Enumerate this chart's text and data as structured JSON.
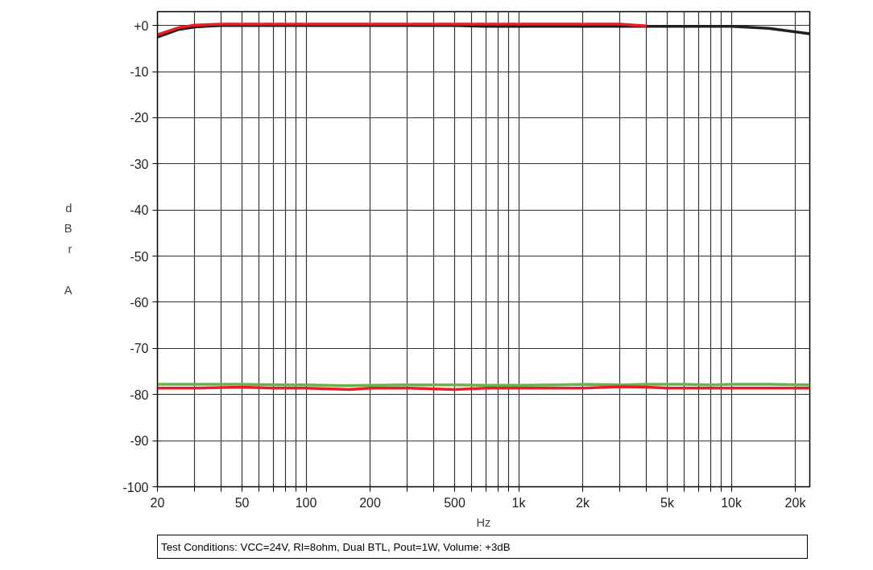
{
  "chart_data": {
    "type": "line",
    "xlabel": "Hz",
    "ylabel": "dBr A",
    "annotations": [
      "Test Conditions: VCC=24V, Rl=8ohm, Dual BTL, Pout=1W, Volume: +3dB"
    ],
    "log": "x",
    "grid": true,
    "marker": "none",
    "line_style": "solid",
    "xlim": [
      20,
      23400
    ],
    "ylim": [
      -100,
      3
    ],
    "xticks": [
      20,
      {
        "value": 30,
        "label": null
      },
      {
        "value": 40,
        "label": null
      },
      50,
      {
        "value": 60,
        "label": null
      },
      {
        "value": 70,
        "label": null
      },
      {
        "value": 80,
        "label": null
      },
      {
        "value": 90,
        "label": null
      },
      100,
      200,
      {
        "value": 300,
        "label": null
      },
      {
        "value": 400,
        "label": null
      },
      500,
      {
        "value": 600,
        "label": null
      },
      {
        "value": 700,
        "label": null
      },
      {
        "value": 800,
        "label": null
      },
      {
        "value": 900,
        "label": null
      },
      {
        "value": 1000,
        "label": "1k"
      },
      {
        "value": 2000,
        "label": "2k"
      },
      {
        "value": 3000,
        "label": null
      },
      {
        "value": 4000,
        "label": null
      },
      {
        "value": 5000,
        "label": "5k"
      },
      {
        "value": 6000,
        "label": null
      },
      {
        "value": 7000,
        "label": null
      },
      {
        "value": 8000,
        "label": null
      },
      {
        "value": 9000,
        "label": null
      },
      {
        "value": 10000,
        "label": "10k"
      },
      {
        "value": 20000,
        "label": "20k"
      }
    ],
    "yticks": [
      {
        "value": 0,
        "label": "+0"
      },
      -10,
      -20,
      -30,
      -40,
      -50,
      -60,
      -70,
      -80,
      -90,
      -100
    ],
    "series": [
      {
        "color": "#231f20",
        "x": [
          20,
          25,
          30,
          40,
          60,
          100,
          200,
          500,
          700,
          1000,
          3000,
          5000,
          10000,
          15000,
          23400
        ],
        "values": [
          -2.5,
          -0.9,
          -0.3,
          0,
          0,
          0,
          0,
          0,
          -0.2,
          -0.2,
          -0.2,
          -0.2,
          -0.2,
          -0.6,
          -1.8
        ]
      },
      {
        "color": "#ed1c24",
        "x": [
          20,
          25,
          30,
          40,
          60,
          100,
          200,
          500,
          1000,
          3000,
          4000
        ],
        "values": [
          -2.0,
          -0.5,
          0.1,
          0.3,
          0.3,
          0.3,
          0.3,
          0.3,
          0.3,
          0.3,
          -0.1
        ]
      },
      {
        "color": "#6ab04c",
        "x": [
          20,
          30,
          50,
          80,
          100,
          150,
          200,
          300,
          500,
          700,
          1000,
          1500,
          2000,
          3000,
          4000,
          6000,
          8000,
          10000,
          15000,
          23400
        ],
        "values": [
          -77.8,
          -77.8,
          -77.8,
          -77.9,
          -77.9,
          -78.1,
          -78.0,
          -77.9,
          -77.9,
          -78.0,
          -78.0,
          -77.9,
          -77.8,
          -77.9,
          -77.8,
          -77.8,
          -77.9,
          -77.8,
          -77.8,
          -77.9
        ]
      },
      {
        "color": "#ed1c24",
        "x": [
          20,
          30,
          50,
          70,
          100,
          160,
          200,
          300,
          500,
          700,
          1000,
          2000,
          3000,
          4000,
          5000,
          8000,
          10000,
          15000,
          23400
        ],
        "values": [
          -78.6,
          -78.6,
          -78.4,
          -78.6,
          -78.6,
          -78.9,
          -78.6,
          -78.6,
          -78.9,
          -78.6,
          -78.6,
          -78.6,
          -78.3,
          -78.4,
          -78.6,
          -78.6,
          -78.6,
          -78.6,
          -78.6
        ]
      }
    ]
  }
}
